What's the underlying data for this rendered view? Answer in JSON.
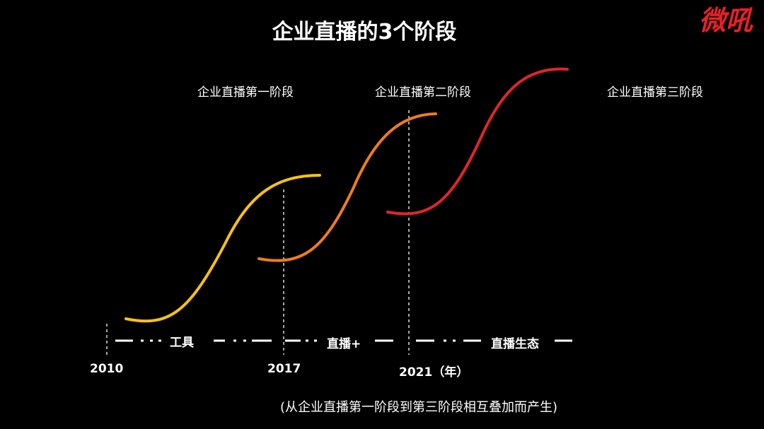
{
  "title": "企业直播的3个阶段",
  "logo": {
    "text": "微吼",
    "color": "#e8202a"
  },
  "stages": [
    {
      "label": "企业直播第一阶段",
      "color": "#f5c01a"
    },
    {
      "label": "企业直播第二阶段",
      "color": "#ee7d1c"
    },
    {
      "label": "企业直播第三阶段",
      "color": "#e2242b"
    }
  ],
  "phases": [
    "工具",
    "直播+",
    "直播生态"
  ],
  "years": [
    "2010",
    "2017",
    "2021（年）"
  ],
  "footnote": "(从企业直播第一阶段到第三阶段相互叠加而产生)"
}
